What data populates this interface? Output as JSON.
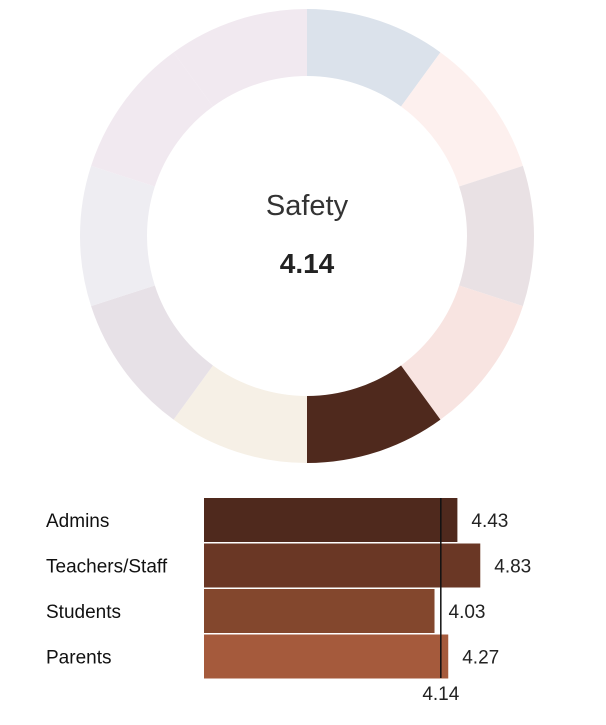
{
  "chart_data": [
    {
      "type": "pie",
      "title": "Safety",
      "value_label": "4.14",
      "segments": 10,
      "highlighted_segment": 5,
      "colors": {
        "segments": [
          "#dbe2eb",
          "#fdf0ee",
          "#e9e1e4",
          "#f8e4e1",
          "#4f291d",
          "#f6f0e6",
          "#e7e1e7",
          "#eeedf2",
          "#f1e9f0",
          "#f1e9f0"
        ]
      }
    },
    {
      "type": "bar",
      "orientation": "horizontal",
      "categories": [
        "Admins",
        "Teachers/Staff",
        "Students",
        "Parents"
      ],
      "values": [
        4.43,
        4.83,
        4.03,
        4.27
      ],
      "value_labels": [
        "4.43",
        "4.83",
        "4.03",
        "4.27"
      ],
      "reference_line": {
        "value": 4.14,
        "label": "4.14"
      },
      "colors": [
        "#4f291d",
        "#6a3725",
        "#83472d",
        "#a55a3c"
      ]
    }
  ]
}
